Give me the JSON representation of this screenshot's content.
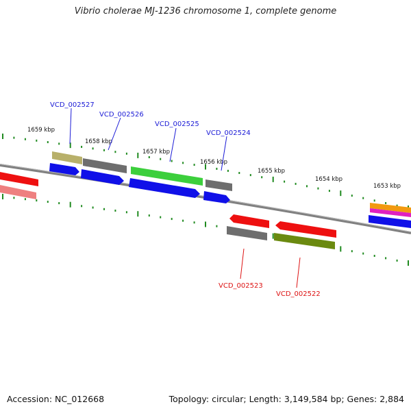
{
  "title": "Vibrio cholerae MJ-1236 chromosome 1, complete genome",
  "footer": {
    "accession": "Accession: NC_012668",
    "topology": "Topology: circular; Length: 3,149,584 bp; Genes: 2,884"
  },
  "kbp_labels": [
    "1659 kbp",
    "1658 kbp",
    "1657 kbp",
    "1656 kbp",
    "1655 kbp",
    "1654 kbp",
    "1653 kbp"
  ],
  "gene_labels": {
    "forward": [
      "VCD_002527",
      "VCD_002526",
      "VCD_002525",
      "VCD_002524"
    ],
    "reverse": [
      "VCD_002523",
      "VCD_002522"
    ]
  },
  "colors": {
    "backbone": "#808080",
    "tick": "#1f8a1f",
    "cds_blue": "#1010e8",
    "khaki": "#b8b06a",
    "gray": "#6e6e6e",
    "green": "#3ccf3c",
    "red": "#ee1010",
    "olive": "#6b8a10",
    "pink": "#ee8080",
    "orange": "#f29a10",
    "magenta": "#e020c0"
  }
}
